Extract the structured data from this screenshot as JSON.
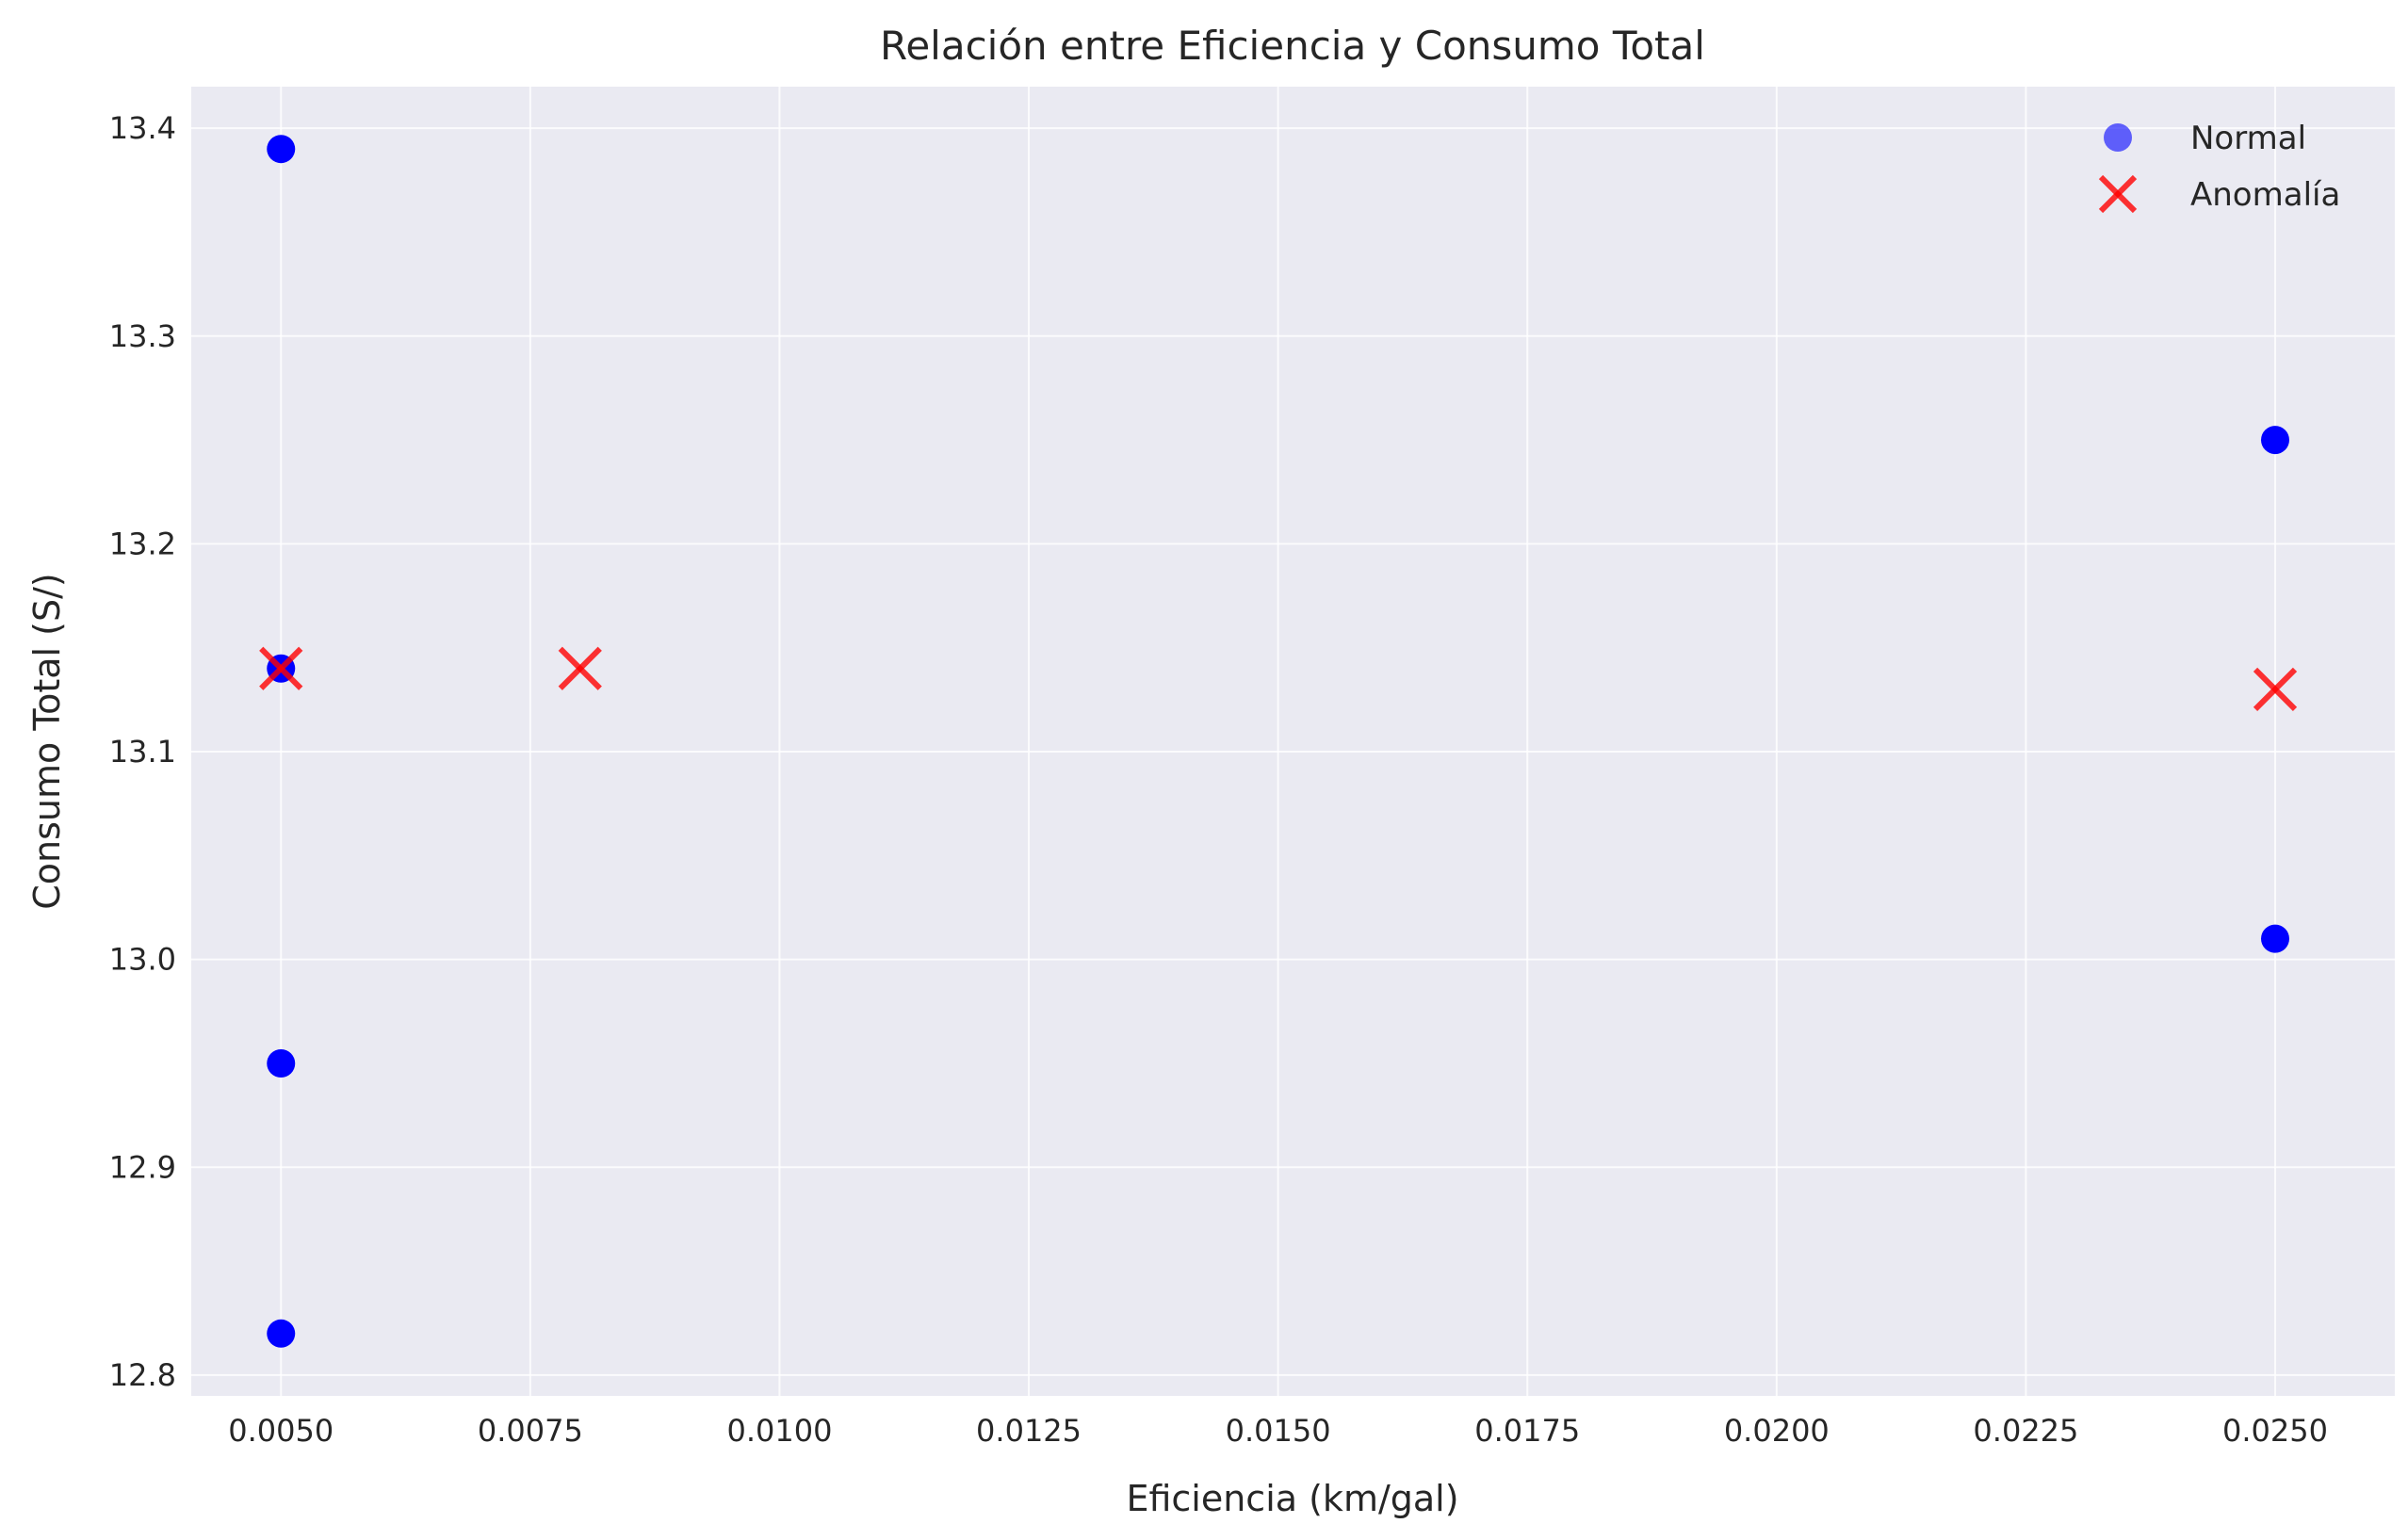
{
  "chart_data": {
    "type": "scatter",
    "title": "Relación entre Eficiencia y Consumo Total",
    "xlabel": "Eficiencia (km/gal)",
    "ylabel": "Consumo Total (S/)",
    "xlim": [
      0.0041,
      0.0262
    ],
    "ylim": [
      12.79,
      13.42
    ],
    "xticks": [
      "0.0050",
      "0.0075",
      "0.0100",
      "0.0125",
      "0.0150",
      "0.0175",
      "0.0200",
      "0.0225",
      "0.0250"
    ],
    "xtick_values": [
      0.005,
      0.0075,
      0.01,
      0.0125,
      0.015,
      0.0175,
      0.02,
      0.0225,
      0.025
    ],
    "yticks": [
      "12.8",
      "12.9",
      "13.0",
      "13.1",
      "13.2",
      "13.3",
      "13.4"
    ],
    "ytick_values": [
      12.8,
      12.9,
      13.0,
      13.1,
      13.2,
      13.3,
      13.4
    ],
    "grid": true,
    "legend_position": "top-right",
    "series": [
      {
        "name": "Normal",
        "marker": "circle",
        "color": "#0000ff",
        "points": [
          {
            "x": 0.005,
            "y": 13.39
          },
          {
            "x": 0.005,
            "y": 13.14
          },
          {
            "x": 0.005,
            "y": 12.95
          },
          {
            "x": 0.005,
            "y": 12.82
          },
          {
            "x": 0.025,
            "y": 13.25
          },
          {
            "x": 0.025,
            "y": 13.01
          }
        ]
      },
      {
        "name": "Anomalía",
        "marker": "x",
        "color": "#ff0000",
        "points": [
          {
            "x": 0.005,
            "y": 13.14
          },
          {
            "x": 0.008,
            "y": 13.14
          },
          {
            "x": 0.025,
            "y": 13.13
          }
        ]
      }
    ]
  }
}
